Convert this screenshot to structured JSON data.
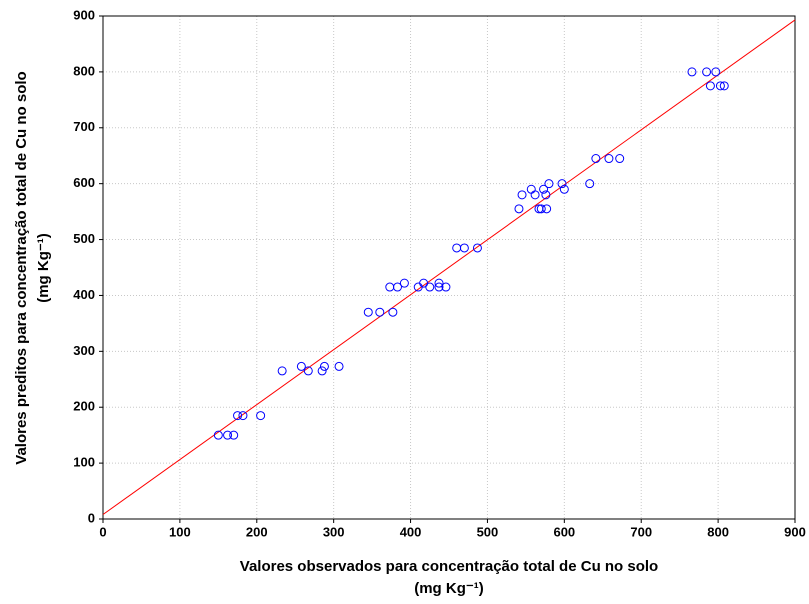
{
  "chart_data": {
    "type": "scatter",
    "xlabel": [
      "Valores observados para concentração total de Cu no solo",
      "(mg Kg⁻¹)"
    ],
    "ylabel": [
      "Valores preditos para concentração total de Cu no solo",
      "(mg Kg⁻¹)"
    ],
    "x": [
      150,
      162,
      170,
      175,
      182,
      205,
      233,
      258,
      267,
      285,
      288,
      307,
      345,
      360,
      377,
      373,
      383,
      392,
      410,
      417,
      425,
      437,
      437,
      446,
      460,
      470,
      487,
      541,
      545,
      557,
      562,
      567,
      570,
      573,
      576,
      577,
      580,
      597,
      600,
      633,
      641,
      658,
      672,
      766,
      785,
      790,
      797,
      803,
      808
    ],
    "values": [
      150,
      150,
      150,
      185,
      185,
      185,
      265,
      273,
      265,
      265,
      273,
      273,
      370,
      370,
      370,
      415,
      415,
      422,
      415,
      422,
      415,
      415,
      422,
      415,
      485,
      485,
      485,
      555,
      580,
      590,
      580,
      555,
      555,
      590,
      580,
      555,
      600,
      600,
      590,
      600,
      645,
      645,
      645,
      800,
      800,
      775,
      800,
      775,
      775
    ],
    "color": "#0000ff",
    "fit_line": {
      "x": [
        0,
        900
      ],
      "y": [
        8,
        893
      ],
      "color": "#ff0000"
    },
    "xlim": [
      0,
      900
    ],
    "ylim": [
      0,
      900
    ],
    "xticks": [
      0,
      100,
      200,
      300,
      400,
      500,
      600,
      700,
      800,
      900
    ],
    "yticks": [
      0,
      100,
      200,
      300,
      400,
      500,
      600,
      700,
      800,
      900
    ],
    "grid": true
  }
}
